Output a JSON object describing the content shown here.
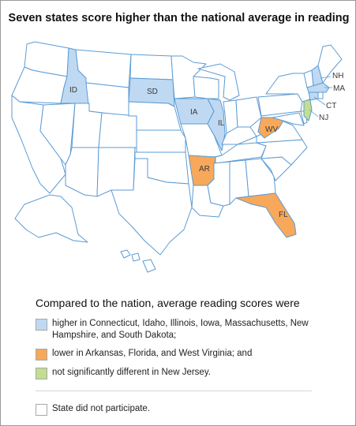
{
  "title": "Seven states score higher than the national average in reading",
  "colors": {
    "higher": "#bfd9f2",
    "lower": "#f7a85a",
    "not_significant": "#c2de8e",
    "default": "#ffffff",
    "border": "#5b9bd5"
  },
  "map": {
    "labels": {
      "ID": "ID",
      "SD": "SD",
      "IA": "IA",
      "IL": "IL",
      "AR": "AR",
      "WV": "WV",
      "FL": "FL",
      "NH": "NH",
      "MA": "MA",
      "CT": "CT",
      "NJ": "NJ"
    },
    "states": [
      {
        "code": "ID",
        "category": "higher"
      },
      {
        "code": "SD",
        "category": "higher"
      },
      {
        "code": "IA",
        "category": "higher"
      },
      {
        "code": "IL",
        "category": "higher"
      },
      {
        "code": "NH",
        "category": "higher"
      },
      {
        "code": "MA",
        "category": "higher"
      },
      {
        "code": "CT",
        "category": "higher"
      },
      {
        "code": "AR",
        "category": "lower"
      },
      {
        "code": "FL",
        "category": "lower"
      },
      {
        "code": "WV",
        "category": "lower"
      },
      {
        "code": "NJ",
        "category": "not_significant"
      }
    ]
  },
  "legend": {
    "title": "Compared to the nation, average reading scores were",
    "items": [
      {
        "color_key": "higher",
        "text": "higher in Connecticut, Idaho, Illinois, Iowa, Massachusetts, New Hampshire, and South Dakota;"
      },
      {
        "color_key": "lower",
        "text": "lower in Arkansas, Florida, and West Virginia; and"
      },
      {
        "color_key": "not_significant",
        "text": "not significantly different in New Jersey."
      }
    ],
    "nonparticipant": {
      "color_key": "default",
      "text": "State did not participate."
    }
  }
}
